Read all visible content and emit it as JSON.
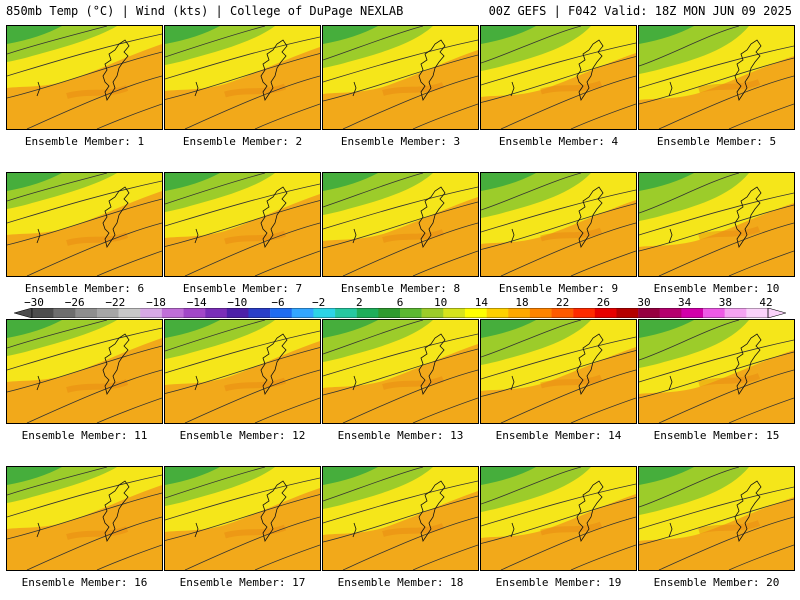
{
  "header": {
    "left": "850mb Temp (°C) | Wind (kts) | College of DuPage NEXLAB",
    "right": "00Z GEFS | F042 Valid: 18Z MON JUN 09 2025"
  },
  "members": [
    "Ensemble Member: 1",
    "Ensemble Member: 2",
    "Ensemble Member: 3",
    "Ensemble Member: 4",
    "Ensemble Member: 5",
    "Ensemble Member: 6",
    "Ensemble Member: 7",
    "Ensemble Member: 8",
    "Ensemble Member: 9",
    "Ensemble Member: 10",
    "Ensemble Member: 11",
    "Ensemble Member: 12",
    "Ensemble Member: 13",
    "Ensemble Member: 14",
    "Ensemble Member: 15",
    "Ensemble Member: 16",
    "Ensemble Member: 17",
    "Ensemble Member: 18",
    "Ensemble Member: 19",
    "Ensemble Member: 20"
  ],
  "colorbar": {
    "labels": [
      "−30",
      "−26",
      "−22",
      "−18",
      "−14",
      "−10",
      "−6",
      "−2",
      "2",
      "6",
      "10",
      "14",
      "18",
      "22",
      "26",
      "30",
      "34",
      "38",
      "42"
    ],
    "colors": [
      "#4e4e4e",
      "#6e6e6e",
      "#8e8e8e",
      "#a6a6a6",
      "#c8c8c8",
      "#d7a9e6",
      "#c06ed8",
      "#a247c8",
      "#7a2eb8",
      "#4c20a8",
      "#2a3ec8",
      "#1f6cf0",
      "#33a6ff",
      "#2dd4e6",
      "#26c8a0",
      "#1eae5a",
      "#2f9a2f",
      "#5cb832",
      "#9ccc2a",
      "#d6e41c",
      "#ffff00",
      "#ffd000",
      "#ffa800",
      "#ff8400",
      "#ff5a00",
      "#ff2a00",
      "#e60000",
      "#b40000",
      "#960040",
      "#b4006e",
      "#d200aa",
      "#ee5ae6",
      "#f5a3f2",
      "#fad2fa"
    ]
  },
  "style": {
    "warm": "#f2a91a",
    "mid": "#f5e61a",
    "cool": "#9ccc2a",
    "cold": "#46ae3c"
  }
}
